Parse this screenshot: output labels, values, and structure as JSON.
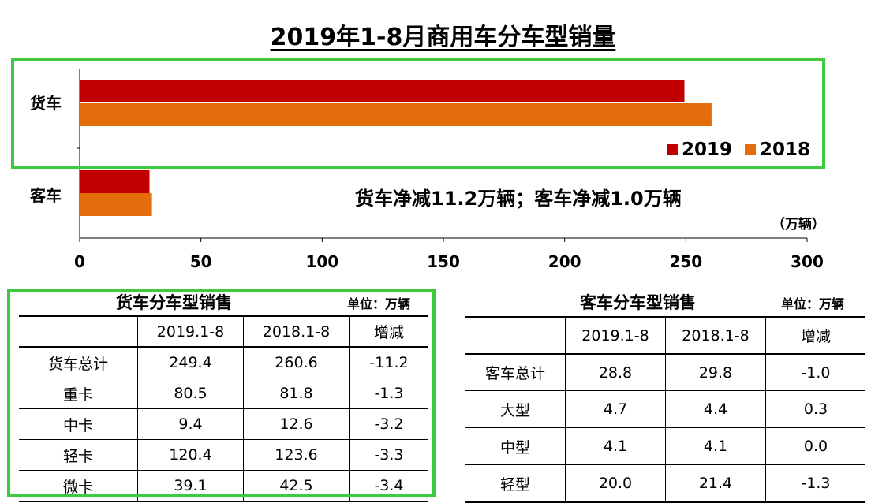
{
  "title": "2019年1-8月商用车分车型销量",
  "note": "货车净减11.2万辆；客车净减1.0万辆",
  "unit_label": "（万辆）",
  "colors": {
    "2019": "#c00000",
    "2018": "#e46c0a",
    "highlight": "#3fc93f"
  },
  "chart_data": {
    "type": "bar",
    "orientation": "horizontal",
    "categories": [
      "货车",
      "客车"
    ],
    "series": [
      {
        "name": "2019",
        "values": [
          249.4,
          28.8
        ]
      },
      {
        "name": "2018",
        "values": [
          260.6,
          29.8
        ]
      }
    ],
    "xlim": [
      0,
      300
    ],
    "xticks": [
      "0",
      "50",
      "100",
      "150",
      "200",
      "250",
      "300"
    ],
    "legend_position": "inside-right",
    "grid": false
  },
  "truck_table": {
    "title": "货车分车型销售",
    "unit": "单位：万辆",
    "headers": [
      "",
      "2019.1-8",
      "2018.1-8",
      "增减"
    ],
    "rows": [
      [
        "货车总计",
        "249.4",
        "260.6",
        "-11.2"
      ],
      [
        "重卡",
        "80.5",
        "81.8",
        "-1.3"
      ],
      [
        "中卡",
        "9.4",
        "12.6",
        "-3.2"
      ],
      [
        "轻卡",
        "120.4",
        "123.6",
        "-3.3"
      ],
      [
        "微卡",
        "39.1",
        "42.5",
        "-3.4"
      ]
    ]
  },
  "bus_table": {
    "title": "客车分车型销售",
    "unit": "单位：万辆",
    "headers": [
      "",
      "2019.1-8",
      "2018.1-8",
      "增减"
    ],
    "rows": [
      [
        "客车总计",
        "28.8",
        "29.8",
        "-1.0"
      ],
      [
        "大型",
        "4.7",
        "4.4",
        "0.3"
      ],
      [
        "中型",
        "4.1",
        "4.1",
        "0.0"
      ],
      [
        "轻型",
        "20.0",
        "21.4",
        "-1.3"
      ]
    ]
  }
}
